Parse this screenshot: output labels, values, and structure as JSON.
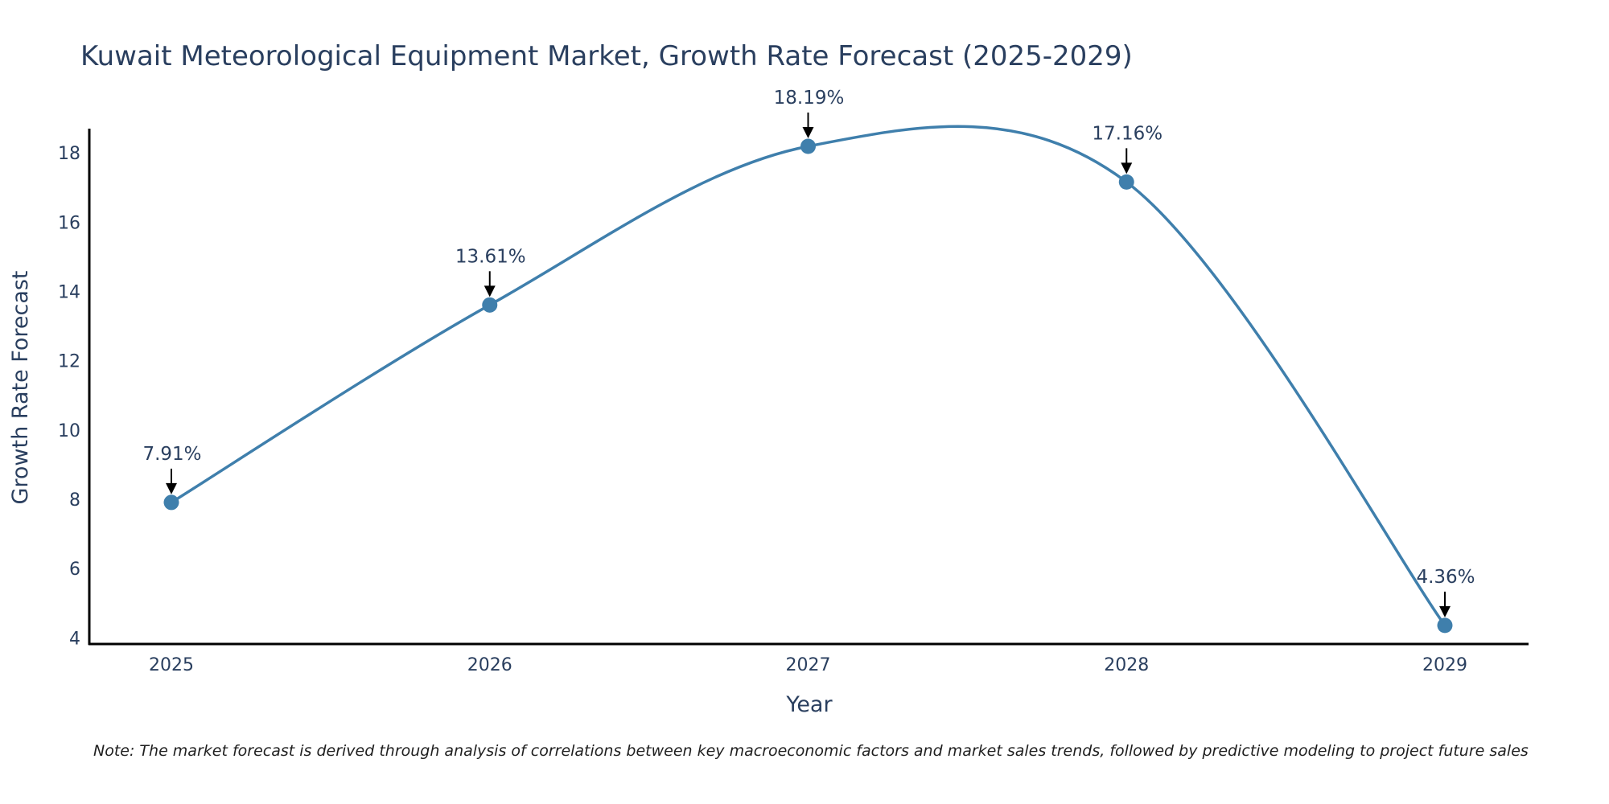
{
  "chart_data": {
    "type": "line",
    "title": "Kuwait Meteorological Equipment Market, Growth Rate Forecast (2025-2029)",
    "xlabel": "Year",
    "ylabel": "Growth Rate Forecast",
    "categories": [
      "2025",
      "2026",
      "2027",
      "2028",
      "2029"
    ],
    "series": [
      {
        "name": "Growth Rate Forecast",
        "values": [
          7.91,
          13.61,
          18.19,
          17.16,
          4.36
        ],
        "color": "#3f7fac"
      }
    ],
    "data_labels": [
      "7.91%",
      "13.61%",
      "18.19%",
      "17.16%",
      "4.36%"
    ],
    "y_ticks": [
      4,
      6,
      8,
      10,
      12,
      14,
      16,
      18
    ],
    "ylim": [
      3.8,
      18.7
    ],
    "grid": false,
    "annotation_color": "#000000"
  },
  "note": "Note: The market forecast is derived through analysis of correlations between key macroeconomic factors and market sales trends, followed by predictive modeling to project future sales"
}
